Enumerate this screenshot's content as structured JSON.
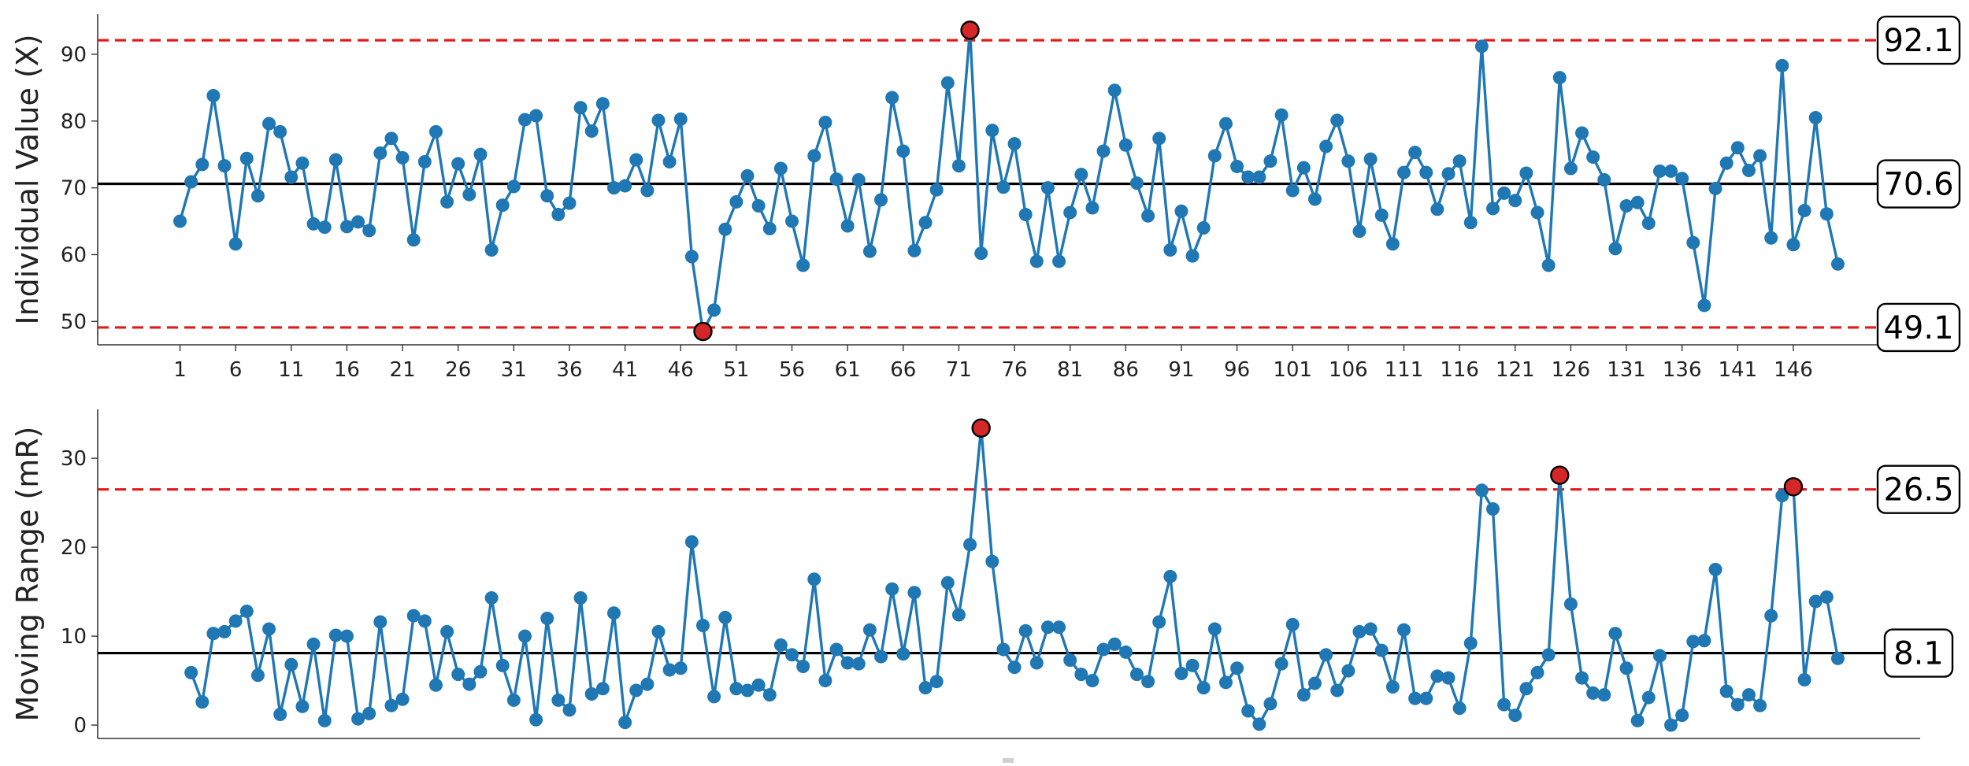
{
  "chart_data": [
    {
      "type": "line",
      "panel": "individuals",
      "ylabel": "Individual Value (X)",
      "ylim": [
        46.5,
        96
      ],
      "yticks": [
        50,
        60,
        70,
        80,
        90
      ],
      "xticks": [
        1,
        6,
        11,
        16,
        21,
        26,
        31,
        36,
        41,
        46,
        51,
        56,
        61,
        66,
        71,
        76,
        81,
        86,
        91,
        96,
        101,
        106,
        111,
        116,
        121,
        126,
        131,
        136,
        141,
        146
      ],
      "x_start": 1,
      "center_line": 70.6,
      "ucl": 92.1,
      "lcl": 49.1,
      "center_label": "70.6",
      "ucl_label": "92.1",
      "lcl_label": "49.1",
      "colors": {
        "line": "#1f77b4",
        "out_of_control": "#d62728",
        "limit": "#e31a1c",
        "center": "#000000"
      },
      "series": [
        {
          "values": [
            65.0,
            70.9,
            73.5,
            83.8,
            73.3,
            61.6,
            74.4,
            68.8,
            79.6,
            78.4,
            71.6,
            73.7,
            64.6,
            64.1,
            74.2,
            64.2,
            64.9,
            63.6,
            75.2,
            77.4,
            74.5,
            62.2,
            73.9,
            78.4,
            67.9,
            73.6,
            69.0,
            75.0,
            60.7,
            67.4,
            70.2,
            80.2,
            80.8,
            68.8,
            66.0,
            67.7,
            82.0,
            78.5,
            82.6,
            70.0,
            70.3,
            74.2,
            69.6,
            80.1,
            73.9,
            80.3,
            59.7,
            48.5,
            51.7,
            63.8,
            67.9,
            71.8,
            67.3,
            63.9,
            72.9,
            65.0,
            58.4,
            74.8,
            79.8,
            71.3,
            64.3,
            71.2,
            60.5,
            68.2,
            83.5,
            75.5,
            60.6,
            64.8,
            69.7,
            85.7,
            73.3,
            93.6,
            60.2,
            78.6,
            70.1,
            76.6,
            66.0,
            59.0,
            70.0,
            59.0,
            66.3,
            72.0,
            67.0,
            75.5,
            84.6,
            76.4,
            70.7,
            65.8,
            77.4,
            60.7,
            66.5,
            59.8,
            64.0,
            74.8,
            79.6,
            73.2,
            71.6,
            71.6,
            74.0,
            80.9,
            69.6,
            73.0,
            68.3,
            76.2,
            80.1,
            74.0,
            63.5,
            74.3,
            65.9,
            61.6,
            72.3,
            75.3,
            72.3,
            66.8,
            72.1,
            74.0,
            64.8,
            91.2,
            66.9,
            69.2,
            68.1,
            72.2,
            66.3,
            58.4,
            86.5,
            72.9,
            78.2,
            74.6,
            71.2,
            60.9,
            67.3,
            67.8,
            64.7,
            72.5,
            72.5,
            71.4,
            61.8,
            52.4,
            69.9,
            73.7,
            76.0,
            72.6,
            74.8,
            62.5,
            88.3,
            61.5,
            66.6,
            80.5,
            66.1,
            58.6
          ]
        }
      ],
      "out_of_control_indices": [
        47,
        71
      ]
    },
    {
      "type": "line",
      "panel": "moving_range",
      "ylabel": "Moving Range (mR)",
      "ylim": [
        -1.5,
        35.5
      ],
      "yticks": [
        0,
        10,
        20,
        30
      ],
      "x_start": 2,
      "center_line": 8.1,
      "ucl": 26.5,
      "center_label": "8.1",
      "ucl_label": "26.5",
      "colors": {
        "line": "#1f77b4",
        "out_of_control": "#d62728",
        "limit": "#e31a1c",
        "center": "#000000"
      },
      "series": [
        {
          "values": [
            5.9,
            2.6,
            10.3,
            10.5,
            11.7,
            12.8,
            5.6,
            10.8,
            1.2,
            6.8,
            2.1,
            9.1,
            0.5,
            10.1,
            10.0,
            0.7,
            1.3,
            11.6,
            2.2,
            2.9,
            12.3,
            11.7,
            4.5,
            10.5,
            5.7,
            4.6,
            6.0,
            14.3,
            6.7,
            2.8,
            10.0,
            0.6,
            12.0,
            2.8,
            1.7,
            14.3,
            3.5,
            4.1,
            12.6,
            0.3,
            3.9,
            4.6,
            10.5,
            6.2,
            6.4,
            20.6,
            11.2,
            3.2,
            12.1,
            4.1,
            3.9,
            4.5,
            3.4,
            9.0,
            7.9,
            6.6,
            16.4,
            5.0,
            8.5,
            7.0,
            6.9,
            10.7,
            7.7,
            15.3,
            8.0,
            14.9,
            4.2,
            4.9,
            16.0,
            12.4,
            20.3,
            33.4,
            18.4,
            8.5,
            6.5,
            10.6,
            7.0,
            11.0,
            11.0,
            7.3,
            5.7,
            5.0,
            8.5,
            9.1,
            8.2,
            5.7,
            4.9,
            11.6,
            16.7,
            5.8,
            6.7,
            4.2,
            10.8,
            4.8,
            6.4,
            1.6,
            0.1,
            2.4,
            6.9,
            11.3,
            3.4,
            4.7,
            7.9,
            3.9,
            6.1,
            10.5,
            10.8,
            8.4,
            4.3,
            10.7,
            3.0,
            3.0,
            5.5,
            5.3,
            1.9,
            9.2,
            26.4,
            24.3,
            2.3,
            1.1,
            4.1,
            5.9,
            7.9,
            28.1,
            13.6,
            5.3,
            3.6,
            3.4,
            10.3,
            6.4,
            0.5,
            3.1,
            7.8,
            0.0,
            1.1,
            9.4,
            9.5,
            17.5,
            3.8,
            2.3,
            3.4,
            2.2,
            12.3,
            25.8,
            26.8,
            5.1,
            13.9,
            14.4,
            7.5
          ]
        }
      ],
      "out_of_control_indices": [
        71,
        123,
        144
      ]
    }
  ]
}
